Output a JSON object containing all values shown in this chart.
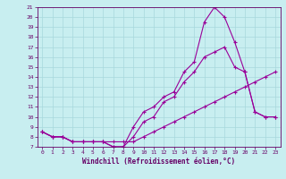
{
  "title": "",
  "xlabel": "Windchill (Refroidissement éolien,°C)",
  "ylabel": "",
  "bg_color": "#c8eef0",
  "grid_color": "#a8d8dc",
  "line_color": "#990099",
  "xlim": [
    -0.5,
    23.5
  ],
  "ylim": [
    7,
    21
  ],
  "xticks": [
    0,
    1,
    2,
    3,
    4,
    5,
    6,
    7,
    8,
    9,
    10,
    11,
    12,
    13,
    14,
    15,
    16,
    17,
    18,
    19,
    20,
    21,
    22,
    23
  ],
  "yticks": [
    7,
    8,
    9,
    10,
    11,
    12,
    13,
    14,
    15,
    16,
    17,
    18,
    19,
    20,
    21
  ],
  "line1_x": [
    0,
    1,
    2,
    3,
    4,
    5,
    6,
    7,
    8,
    9,
    10,
    11,
    12,
    13,
    14,
    15,
    16,
    17,
    18,
    19,
    20,
    21,
    22,
    23
  ],
  "line1_y": [
    8.5,
    8.0,
    8.0,
    7.5,
    7.5,
    7.5,
    7.5,
    7.0,
    7.0,
    9.0,
    10.5,
    11.0,
    12.0,
    12.5,
    14.5,
    15.5,
    19.5,
    21.0,
    20.0,
    17.5,
    14.5,
    10.5,
    10.0,
    10.0
  ],
  "line2_x": [
    0,
    1,
    2,
    3,
    4,
    5,
    6,
    7,
    8,
    9,
    10,
    11,
    12,
    13,
    14,
    15,
    16,
    17,
    18,
    19,
    20,
    21,
    22,
    23
  ],
  "line2_y": [
    8.5,
    8.0,
    8.0,
    7.5,
    7.5,
    7.5,
    7.5,
    7.0,
    7.0,
    8.0,
    9.5,
    10.0,
    11.5,
    12.0,
    13.5,
    14.5,
    16.0,
    16.5,
    17.0,
    15.0,
    14.5,
    10.5,
    10.0,
    10.0
  ],
  "line3_x": [
    0,
    1,
    2,
    3,
    4,
    5,
    6,
    7,
    8,
    9,
    10,
    11,
    12,
    13,
    14,
    15,
    16,
    17,
    18,
    19,
    20,
    21,
    22,
    23
  ],
  "line3_y": [
    8.5,
    8.0,
    8.0,
    7.5,
    7.5,
    7.5,
    7.5,
    7.5,
    7.5,
    7.5,
    8.0,
    8.5,
    9.0,
    9.5,
    10.0,
    10.5,
    11.0,
    11.5,
    12.0,
    12.5,
    13.0,
    13.5,
    14.0,
    14.5
  ],
  "tick_color": "#660066",
  "spine_color": "#660066",
  "xlabel_fontsize": 5.5,
  "tick_fontsize": 4.5,
  "line_width": 0.8,
  "marker_size": 3
}
